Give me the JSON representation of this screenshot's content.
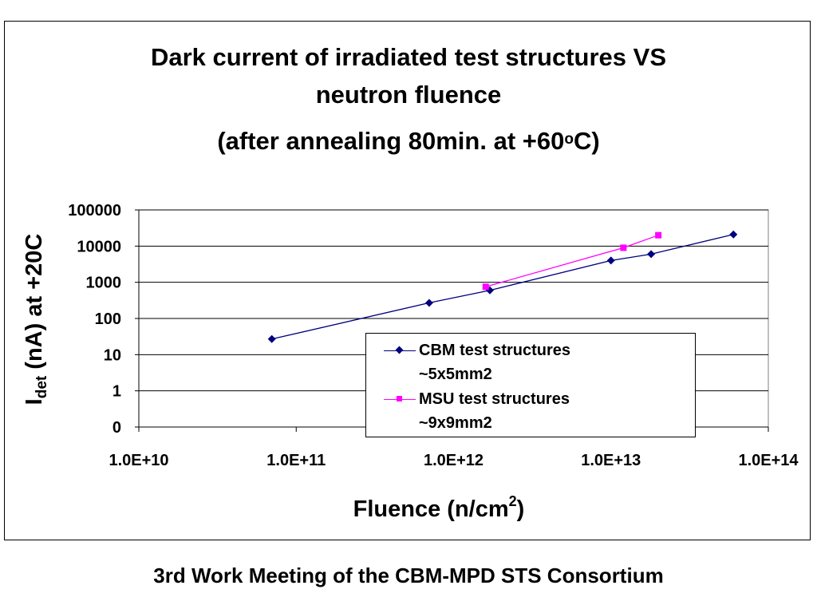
{
  "chart_data": {
    "type": "line",
    "title_lines": [
      "Dark current of irradiated test structures VS",
      "neutron fluence"
    ],
    "subtitle": "(after annealing 80min. at +60",
    "subtitle_sup": "o",
    "subtitle_end": "C)",
    "xlabel": "Fluence (n/cm",
    "xlabel_sup": "2",
    "xlabel_end": ")",
    "ylabel": "I",
    "ylabel_sub": "det",
    "ylabel_end": " (nA) at +20C",
    "x_scale": "log",
    "y_scale": "log",
    "xlim": [
      10000000000.0,
      100000000000000.0
    ],
    "ylim": [
      0.1,
      100000
    ],
    "x_ticks": [
      {
        "value": 10000000000.0,
        "label": "1.0E+10"
      },
      {
        "value": 100000000000.0,
        "label": "1.0E+11"
      },
      {
        "value": 1000000000000.0,
        "label": "1.0E+12"
      },
      {
        "value": 10000000000000.0,
        "label": "1.0E+13"
      },
      {
        "value": 100000000000000.0,
        "label": "1.0E+14"
      }
    ],
    "y_ticks": [
      {
        "value": 0.1,
        "label": "0"
      },
      {
        "value": 1,
        "label": "1"
      },
      {
        "value": 10,
        "label": "10"
      },
      {
        "value": 100,
        "label": "100"
      },
      {
        "value": 1000,
        "label": "1000"
      },
      {
        "value": 10000,
        "label": "10000"
      },
      {
        "value": 100000,
        "label": "100000"
      }
    ],
    "grid": "horizontal",
    "legend_position": "bottom-right",
    "series": [
      {
        "name": "CBM test structures ~5x5mm2",
        "name_lines": [
          "CBM test structures",
          "~5x5mm2"
        ],
        "color": "#000080",
        "marker": "diamond",
        "points": [
          {
            "x": 70000000000.0,
            "y": 27
          },
          {
            "x": 700000000000.0,
            "y": 270
          },
          {
            "x": 1700000000000.0,
            "y": 600
          },
          {
            "x": 10000000000000.0,
            "y": 4000
          },
          {
            "x": 18000000000000.0,
            "y": 6000
          },
          {
            "x": 60000000000000.0,
            "y": 21000
          }
        ]
      },
      {
        "name": "MSU test structures ~9x9mm2",
        "name_lines": [
          "MSU test structures",
          "~9x9mm2"
        ],
        "color": "#ff00ff",
        "marker": "square",
        "points": [
          {
            "x": 1600000000000.0,
            "y": 750
          },
          {
            "x": 12000000000000.0,
            "y": 9000
          },
          {
            "x": 20000000000000.0,
            "y": 20000
          }
        ]
      }
    ]
  },
  "footer": "3rd Work Meeting of the CBM-MPD STS Consortium"
}
